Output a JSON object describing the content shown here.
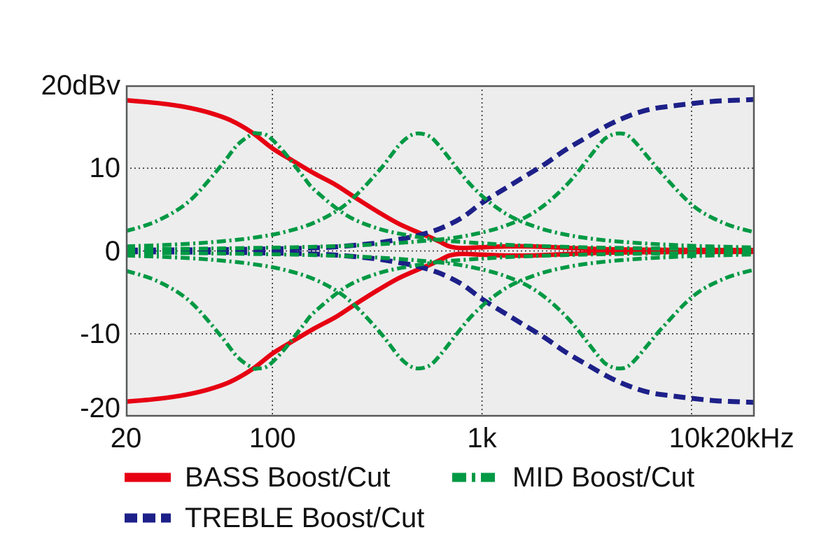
{
  "chart_data": {
    "type": "line",
    "description": "EQ tone-control frequency response curves (boost and cut)",
    "x_axis": {
      "scale": "log",
      "unit": "Hz",
      "min": 20,
      "max": 20000,
      "ticks": [
        {
          "value": 20,
          "label": "20"
        },
        {
          "value": 100,
          "label": "100"
        },
        {
          "value": 1000,
          "label": "1k"
        },
        {
          "value": 10000,
          "label": "10k"
        },
        {
          "value": 20000,
          "label": "20kHz"
        }
      ],
      "gridlines": [
        100,
        1000,
        10000
      ]
    },
    "y_axis": {
      "unit": "dBv",
      "min": -20,
      "max": 20,
      "ticks": [
        {
          "value": 20,
          "label": "20dBv"
        },
        {
          "value": 10,
          "label": "10"
        },
        {
          "value": 0,
          "label": "0"
        },
        {
          "value": -10,
          "label": "-10"
        },
        {
          "value": -20,
          "label": "-20"
        }
      ],
      "gridlines": [
        10,
        0,
        -10
      ]
    },
    "colors": {
      "bass": "#e60012",
      "mid": "#009944",
      "treble": "#1d2088",
      "plot_bg": "#ededed",
      "grid": "#2e2e2e",
      "frame": "#57585a",
      "text": "#111111"
    },
    "legend": [
      {
        "label": "BASS Boost/Cut",
        "style": "solid",
        "color": "#e60012"
      },
      {
        "label": "MID Boost/Cut",
        "style": "dashdot",
        "color": "#009944"
      },
      {
        "label": "TREBLE Boost/Cut",
        "style": "dashed",
        "color": "#1d2088"
      }
    ],
    "series": [
      {
        "name": "BASS boost",
        "band": "bass",
        "direction": "boost",
        "color": "#e60012",
        "style": "solid",
        "points": [
          [
            20,
            18.2
          ],
          [
            25,
            18.0
          ],
          [
            32,
            17.7
          ],
          [
            40,
            17.3
          ],
          [
            50,
            16.7
          ],
          [
            63,
            15.8
          ],
          [
            80,
            14.3
          ],
          [
            100,
            12.4
          ],
          [
            125,
            10.9
          ],
          [
            160,
            9.3
          ],
          [
            200,
            8.0
          ],
          [
            250,
            6.4
          ],
          [
            320,
            4.7
          ],
          [
            400,
            3.3
          ],
          [
            500,
            2.2
          ],
          [
            560,
            1.7
          ],
          [
            630,
            1.1
          ],
          [
            700,
            0.55
          ],
          [
            800,
            0.35
          ],
          [
            1000,
            0.45
          ],
          [
            1300,
            0.55
          ],
          [
            1700,
            0.55
          ],
          [
            2200,
            0.45
          ],
          [
            3000,
            0.3
          ],
          [
            4000,
            0.2
          ],
          [
            6000,
            0.15
          ],
          [
            10000,
            0.12
          ],
          [
            20000,
            0.1
          ]
        ]
      },
      {
        "name": "BASS cut",
        "band": "bass",
        "direction": "cut",
        "color": "#e60012",
        "style": "solid",
        "points": [
          [
            20,
            -18.2
          ],
          [
            25,
            -18.0
          ],
          [
            32,
            -17.7
          ],
          [
            40,
            -17.3
          ],
          [
            50,
            -16.7
          ],
          [
            63,
            -15.8
          ],
          [
            80,
            -14.3
          ],
          [
            100,
            -12.4
          ],
          [
            125,
            -10.9
          ],
          [
            160,
            -9.3
          ],
          [
            200,
            -8.0
          ],
          [
            250,
            -6.4
          ],
          [
            320,
            -4.7
          ],
          [
            400,
            -3.3
          ],
          [
            500,
            -2.2
          ],
          [
            560,
            -1.7
          ],
          [
            630,
            -1.1
          ],
          [
            700,
            -0.55
          ],
          [
            800,
            -0.35
          ],
          [
            1000,
            -0.45
          ],
          [
            1300,
            -0.55
          ],
          [
            1700,
            -0.55
          ],
          [
            2200,
            -0.45
          ],
          [
            3000,
            -0.3
          ],
          [
            4000,
            -0.2
          ],
          [
            6000,
            -0.15
          ],
          [
            10000,
            -0.12
          ],
          [
            20000,
            -0.1
          ]
        ]
      },
      {
        "name": "TREBLE boost",
        "band": "treble",
        "direction": "boost",
        "color": "#1d2088",
        "style": "dashed",
        "points": [
          [
            20,
            0.1
          ],
          [
            50,
            0.15
          ],
          [
            100,
            0.25
          ],
          [
            150,
            0.35
          ],
          [
            200,
            0.5
          ],
          [
            300,
            0.9
          ],
          [
            400,
            1.4
          ],
          [
            500,
            1.9
          ],
          [
            630,
            2.7
          ],
          [
            800,
            4.0
          ],
          [
            1000,
            5.8
          ],
          [
            1300,
            7.6
          ],
          [
            1600,
            9.0
          ],
          [
            2000,
            10.5
          ],
          [
            2500,
            12.2
          ],
          [
            3200,
            13.8
          ],
          [
            4000,
            15.2
          ],
          [
            5000,
            16.3
          ],
          [
            6300,
            17.1
          ],
          [
            8000,
            17.5
          ],
          [
            10000,
            17.8
          ],
          [
            13000,
            18.1
          ],
          [
            16000,
            18.2
          ],
          [
            20000,
            18.3
          ]
        ]
      },
      {
        "name": "TREBLE cut",
        "band": "treble",
        "direction": "cut",
        "color": "#1d2088",
        "style": "dashed",
        "points": [
          [
            20,
            -0.1
          ],
          [
            50,
            -0.15
          ],
          [
            100,
            -0.25
          ],
          [
            150,
            -0.35
          ],
          [
            200,
            -0.5
          ],
          [
            300,
            -0.9
          ],
          [
            400,
            -1.4
          ],
          [
            500,
            -1.9
          ],
          [
            630,
            -2.7
          ],
          [
            800,
            -4.0
          ],
          [
            1000,
            -5.8
          ],
          [
            1300,
            -7.6
          ],
          [
            1600,
            -9.0
          ],
          [
            2000,
            -10.5
          ],
          [
            2500,
            -12.2
          ],
          [
            3200,
            -13.8
          ],
          [
            4000,
            -15.2
          ],
          [
            5000,
            -16.3
          ],
          [
            6300,
            -17.1
          ],
          [
            8000,
            -17.5
          ],
          [
            10000,
            -17.8
          ],
          [
            13000,
            -18.1
          ],
          [
            16000,
            -18.2
          ],
          [
            20000,
            -18.3
          ]
        ]
      },
      {
        "name": "MID boost (low setting ~85 Hz)",
        "band": "mid",
        "direction": "boost",
        "center_hz": 85,
        "color": "#009944",
        "style": "dashdot",
        "points": [
          [
            20,
            2.4
          ],
          [
            28,
            3.6
          ],
          [
            40,
            6.0
          ],
          [
            56,
            10.1
          ],
          [
            68,
            12.8
          ],
          [
            80,
            14.1
          ],
          [
            85,
            14.2
          ],
          [
            95,
            13.9
          ],
          [
            113,
            12.0
          ],
          [
            140,
            9.0
          ],
          [
            160,
            7.3
          ],
          [
            226,
            4.3
          ],
          [
            320,
            2.7
          ],
          [
            453,
            1.85
          ],
          [
            640,
            1.3
          ],
          [
            905,
            1.0
          ],
          [
            1280,
            0.76
          ],
          [
            1810,
            0.61
          ],
          [
            2560,
            0.49
          ],
          [
            3620,
            0.41
          ],
          [
            5120,
            0.35
          ],
          [
            7240,
            0.29
          ],
          [
            10240,
            0.25
          ],
          [
            14480,
            0.22
          ],
          [
            20000,
            0.2
          ]
        ]
      },
      {
        "name": "MID cut (low setting ~85 Hz)",
        "band": "mid",
        "direction": "cut",
        "center_hz": 85,
        "color": "#009944",
        "style": "dashdot",
        "points": [
          [
            20,
            -2.4
          ],
          [
            28,
            -3.6
          ],
          [
            40,
            -6.0
          ],
          [
            56,
            -10.1
          ],
          [
            68,
            -12.8
          ],
          [
            80,
            -14.1
          ],
          [
            85,
            -14.2
          ],
          [
            95,
            -13.9
          ],
          [
            113,
            -12.0
          ],
          [
            140,
            -9.0
          ],
          [
            160,
            -7.3
          ],
          [
            226,
            -4.3
          ],
          [
            320,
            -2.7
          ],
          [
            453,
            -1.85
          ],
          [
            640,
            -1.3
          ],
          [
            905,
            -1.0
          ],
          [
            1280,
            -0.76
          ],
          [
            1810,
            -0.61
          ],
          [
            2560,
            -0.49
          ],
          [
            3620,
            -0.41
          ],
          [
            5120,
            -0.35
          ],
          [
            7240,
            -0.29
          ],
          [
            10240,
            -0.25
          ],
          [
            14480,
            -0.22
          ],
          [
            20000,
            -0.2
          ]
        ]
      },
      {
        "name": "MID boost (mid setting ~500 Hz)",
        "band": "mid",
        "direction": "boost",
        "center_hz": 500,
        "color": "#009944",
        "style": "dashdot",
        "points": [
          [
            20,
            0.55
          ],
          [
            28,
            0.68
          ],
          [
            40,
            0.87
          ],
          [
            56,
            1.14
          ],
          [
            80,
            1.57
          ],
          [
            113,
            2.26
          ],
          [
            160,
            3.47
          ],
          [
            226,
            5.7
          ],
          [
            320,
            9.6
          ],
          [
            400,
            12.7
          ],
          [
            453,
            13.9
          ],
          [
            500,
            14.2
          ],
          [
            565,
            13.8
          ],
          [
            640,
            12.4
          ],
          [
            905,
            7.7
          ],
          [
            1280,
            4.6
          ],
          [
            1810,
            2.9
          ],
          [
            2560,
            1.93
          ],
          [
            3620,
            1.37
          ],
          [
            5120,
            1.02
          ],
          [
            7240,
            0.79
          ],
          [
            10240,
            0.62
          ],
          [
            14480,
            0.51
          ],
          [
            20000,
            0.42
          ]
        ]
      },
      {
        "name": "MID cut (mid setting ~500 Hz)",
        "band": "mid",
        "direction": "cut",
        "center_hz": 500,
        "color": "#009944",
        "style": "dashdot",
        "points": [
          [
            20,
            -0.55
          ],
          [
            28,
            -0.68
          ],
          [
            40,
            -0.87
          ],
          [
            56,
            -1.14
          ],
          [
            80,
            -1.57
          ],
          [
            113,
            -2.26
          ],
          [
            160,
            -3.47
          ],
          [
            226,
            -5.7
          ],
          [
            320,
            -9.6
          ],
          [
            400,
            -12.7
          ],
          [
            453,
            -13.9
          ],
          [
            500,
            -14.2
          ],
          [
            565,
            -13.8
          ],
          [
            640,
            -12.4
          ],
          [
            905,
            -7.7
          ],
          [
            1280,
            -4.6
          ],
          [
            1810,
            -2.9
          ],
          [
            2560,
            -1.93
          ],
          [
            3620,
            -1.37
          ],
          [
            5120,
            -1.02
          ],
          [
            7240,
            -0.79
          ],
          [
            10240,
            -0.62
          ],
          [
            14480,
            -0.51
          ],
          [
            20000,
            -0.42
          ]
        ]
      },
      {
        "name": "MID boost (high setting ~4.5 kHz)",
        "band": "mid",
        "direction": "boost",
        "center_hz": 4500,
        "color": "#009944",
        "style": "dashdot",
        "points": [
          [
            20,
            0.2
          ],
          [
            40,
            0.26
          ],
          [
            80,
            0.36
          ],
          [
            160,
            0.51
          ],
          [
            320,
            0.8
          ],
          [
            640,
            1.41
          ],
          [
            905,
            2.0
          ],
          [
            1280,
            3.0
          ],
          [
            1810,
            4.8
          ],
          [
            2560,
            8.1
          ],
          [
            3620,
            12.8
          ],
          [
            4000,
            13.8
          ],
          [
            4500,
            14.2
          ],
          [
            5120,
            13.7
          ],
          [
            6400,
            10.9
          ],
          [
            7240,
            9.3
          ],
          [
            10240,
            5.4
          ],
          [
            14480,
            3.3
          ],
          [
            20000,
            2.25
          ]
        ]
      },
      {
        "name": "MID cut (high setting ~4.5 kHz)",
        "band": "mid",
        "direction": "cut",
        "center_hz": 4500,
        "color": "#009944",
        "style": "dashdot",
        "points": [
          [
            20,
            -0.2
          ],
          [
            40,
            -0.26
          ],
          [
            80,
            -0.36
          ],
          [
            160,
            -0.51
          ],
          [
            320,
            -0.8
          ],
          [
            640,
            -1.41
          ],
          [
            905,
            -2.0
          ],
          [
            1280,
            -3.0
          ],
          [
            1810,
            -4.8
          ],
          [
            2560,
            -8.1
          ],
          [
            3620,
            -12.8
          ],
          [
            4000,
            -13.8
          ],
          [
            4500,
            -14.2
          ],
          [
            5120,
            -13.7
          ],
          [
            6400,
            -10.9
          ],
          [
            7240,
            -9.3
          ],
          [
            10240,
            -5.4
          ],
          [
            14480,
            -3.3
          ],
          [
            20000,
            -2.25
          ]
        ]
      }
    ]
  }
}
